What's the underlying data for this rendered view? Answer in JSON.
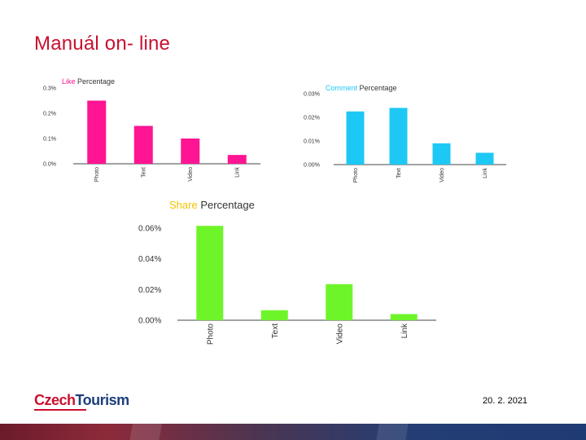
{
  "slide": {
    "title": "Manuál on- line",
    "logo_part1": "Czech",
    "logo_part2": "Tourism",
    "date": "20. 2. 2021"
  },
  "colors": {
    "title": "#c8102e",
    "logo_red": "#c8102e",
    "logo_blue": "#1c3f7a",
    "like": "#ff1493",
    "comment": "#1ec8f5",
    "share": "#6ef52a"
  },
  "chart_data": [
    {
      "type": "bar",
      "title_accent": "Like",
      "title_rest": "Percentage",
      "categories": [
        "Photo",
        "Text",
        "Video",
        "Link"
      ],
      "values": [
        0.25,
        0.15,
        0.1,
        0.035
      ],
      "yticks": [
        "0.0%",
        "0.1%",
        "0.2%",
        "0.3%"
      ],
      "ylim": [
        0,
        0.3
      ],
      "unit": "%",
      "color": "#ff1493",
      "accent_color": "#ff1493"
    },
    {
      "type": "bar",
      "title_accent": "Comment",
      "title_rest": "Percentage",
      "categories": [
        "Photo",
        "Text",
        "Video",
        "Link"
      ],
      "values": [
        0.0225,
        0.024,
        0.009,
        0.005
      ],
      "yticks": [
        "0.00%",
        "0.01%",
        "0.02%",
        "0.03%"
      ],
      "ylim": [
        0,
        0.03
      ],
      "unit": "%",
      "color": "#1ec8f5",
      "accent_color": "#1ec8f5"
    },
    {
      "type": "bar",
      "title_accent": "Share",
      "title_rest": "Percentage",
      "categories": [
        "Photo",
        "Text",
        "Video",
        "Link"
      ],
      "values": [
        0.0615,
        0.0065,
        0.0235,
        0.004
      ],
      "yticks": [
        "0.00%",
        "0.02%",
        "0.04%",
        "0.06%"
      ],
      "ylim": [
        0,
        0.06
      ],
      "unit": "%",
      "color": "#6ef52a",
      "accent_color": "#f2c200"
    }
  ]
}
